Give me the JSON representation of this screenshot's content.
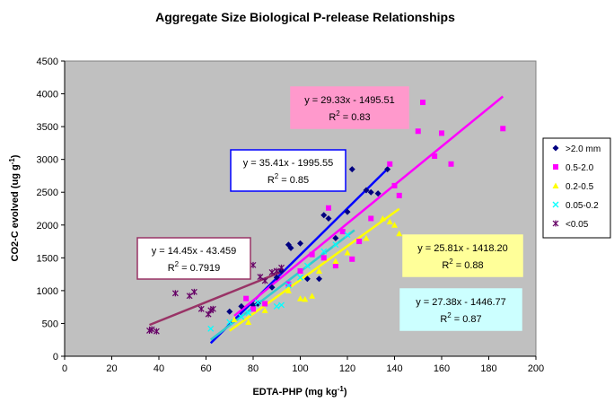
{
  "chart_data": {
    "type": "scatter",
    "title": "Aggregate Size Biological P-release Relationships",
    "xlabel": "EDTA-PHP (mg kg",
    "xlabel_sup": "-1",
    "xlabel_end": ")",
    "ylabel": "CO2-C evolved (ug g",
    "ylabel_sup": "-1",
    "ylabel_end": ")",
    "xlim": [
      0,
      200
    ],
    "ylim": [
      0,
      4500
    ],
    "xticks": [
      0,
      20,
      40,
      60,
      80,
      100,
      120,
      140,
      160,
      180,
      200
    ],
    "yticks": [
      0,
      500,
      1000,
      1500,
      2000,
      2500,
      3000,
      3500,
      4000,
      4500
    ],
    "grid": false,
    "plot_background": "#c0c0c0",
    "legend_position": "right",
    "series": [
      {
        "name": ">2.0 mm",
        "marker": "diamond",
        "color": "#000080",
        "points": [
          [
            70,
            680
          ],
          [
            75,
            760
          ],
          [
            80,
            780
          ],
          [
            82,
            800
          ],
          [
            88,
            1050
          ],
          [
            90,
            1200
          ],
          [
            92,
            1300
          ],
          [
            95,
            1700
          ],
          [
            96,
            1650
          ],
          [
            100,
            1720
          ],
          [
            103,
            1180
          ],
          [
            108,
            1180
          ],
          [
            110,
            2150
          ],
          [
            112,
            2100
          ],
          [
            115,
            1800
          ],
          [
            120,
            2200
          ],
          [
            122,
            2850
          ],
          [
            128,
            2530
          ],
          [
            130,
            2500
          ],
          [
            133,
            2480
          ],
          [
            137,
            2850
          ]
        ],
        "fit": {
          "slope": 35.41,
          "intercept": -1995.55,
          "x_range": [
            62,
            137
          ],
          "color": "#0000ff",
          "equation": "y = 35.41x - 1995.55",
          "r2_label": "R",
          "r2_value": " = 0.85",
          "box_bg": "#ffffff",
          "box_border": "#0000ff"
        }
      },
      {
        "name": "0.5-2.0",
        "marker": "square",
        "color": "#ff00ff",
        "points": [
          [
            77,
            880
          ],
          [
            80,
            720
          ],
          [
            85,
            800
          ],
          [
            95,
            1100
          ],
          [
            100,
            1300
          ],
          [
            105,
            1550
          ],
          [
            110,
            1500
          ],
          [
            112,
            2260
          ],
          [
            115,
            1380
          ],
          [
            118,
            1900
          ],
          [
            122,
            1480
          ],
          [
            125,
            1750
          ],
          [
            130,
            2100
          ],
          [
            138,
            2930
          ],
          [
            140,
            2600
          ],
          [
            142,
            2450
          ],
          [
            150,
            3430
          ],
          [
            152,
            3870
          ],
          [
            157,
            3050
          ],
          [
            160,
            3400
          ],
          [
            164,
            2930
          ],
          [
            186,
            3470
          ]
        ],
        "fit": {
          "slope": 29.33,
          "intercept": -1495.51,
          "x_range": [
            72,
            186
          ],
          "color": "#ff00ff",
          "equation": "y = 29.33x - 1495.51",
          "r2_label": "R",
          "r2_value": " = 0.83",
          "box_bg": "#ff99cc",
          "box_border": "#ff99cc"
        }
      },
      {
        "name": "0.2-0.5",
        "marker": "triangle",
        "color": "#ffff00",
        "points": [
          [
            72,
            560
          ],
          [
            78,
            520
          ],
          [
            85,
            700
          ],
          [
            95,
            1000
          ],
          [
            100,
            880
          ],
          [
            102,
            870
          ],
          [
            105,
            920
          ],
          [
            108,
            1300
          ],
          [
            115,
            1450
          ],
          [
            120,
            1580
          ],
          [
            128,
            1800
          ],
          [
            135,
            2100
          ],
          [
            138,
            2050
          ],
          [
            140,
            2000
          ],
          [
            142,
            1870
          ]
        ],
        "fit": {
          "slope": 25.81,
          "intercept": -1418.2,
          "x_range": [
            70,
            142
          ],
          "color": "#ffff00",
          "equation": "y = 25.81x - 1418.20",
          "r2_label": "R",
          "r2_value": " = 0.88",
          "box_bg": "#ffff99",
          "box_border": "#ffff99"
        }
      },
      {
        "name": "0.05-0.2",
        "marker": "x",
        "color": "#00ffff",
        "points": [
          [
            62,
            420
          ],
          [
            70,
            520
          ],
          [
            75,
            600
          ],
          [
            78,
            660
          ],
          [
            82,
            820
          ],
          [
            90,
            760
          ],
          [
            92,
            780
          ],
          [
            95,
            1080
          ],
          [
            100,
            1200
          ],
          [
            103,
            1380
          ],
          [
            110,
            1600
          ],
          [
            115,
            1700
          ],
          [
            120,
            1850
          ]
        ],
        "fit": {
          "slope": 27.38,
          "intercept": -1446.77,
          "x_range": [
            62,
            123
          ],
          "color": "#33cccc",
          "equation": "y = 27.38x - 1446.77",
          "r2_label": "R",
          "r2_value": " = 0.87",
          "box_bg": "#ccffff",
          "box_border": "#ccffff"
        }
      },
      {
        "name": "<0.05",
        "marker": "star",
        "color": "#660066",
        "points": [
          [
            36,
            390
          ],
          [
            37,
            410
          ],
          [
            39,
            380
          ],
          [
            47,
            960
          ],
          [
            53,
            920
          ],
          [
            55,
            980
          ],
          [
            58,
            720
          ],
          [
            61,
            640
          ],
          [
            62,
            700
          ],
          [
            63,
            720
          ],
          [
            80,
            1390
          ],
          [
            83,
            1210
          ],
          [
            85,
            1150
          ],
          [
            88,
            1280
          ],
          [
            90,
            1300
          ],
          [
            92,
            1350
          ]
        ],
        "fit": {
          "slope": 14.45,
          "intercept": -43.459,
          "x_range": [
            36,
            93
          ],
          "color": "#993366",
          "equation": "y = 14.45x - 43.459",
          "r2_label": "R",
          "r2_value": " = 0.7919",
          "box_bg": "#ffffff",
          "box_border": "#993366"
        }
      }
    ]
  }
}
